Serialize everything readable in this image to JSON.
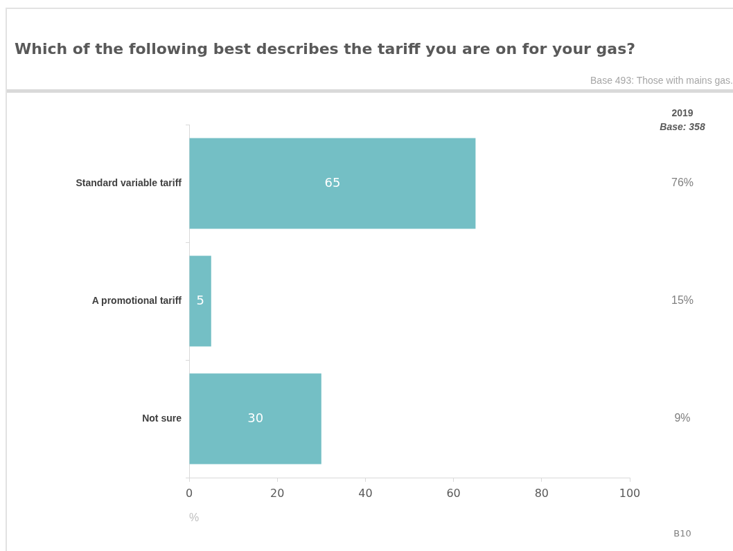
{
  "chart_data": {
    "type": "bar",
    "orientation": "horizontal",
    "title": "Which of the following best describes the tariff you are on for your gas?",
    "subtitle": "Base 493: Those with mains gas.",
    "categories": [
      "Standard variable tariff",
      "A promotional tariff",
      "Not sure"
    ],
    "values": [
      65,
      5,
      30
    ],
    "color": "#74bfc5",
    "data_labels": true,
    "xlim": [
      0,
      100
    ],
    "xticks": [
      0,
      20,
      40,
      60,
      80,
      100
    ],
    "xlabel": "%",
    "grid": false,
    "legend": false,
    "annotations": [
      "2019",
      "Base: 358",
      "76%",
      "15%",
      "9%",
      "B10"
    ]
  }
}
